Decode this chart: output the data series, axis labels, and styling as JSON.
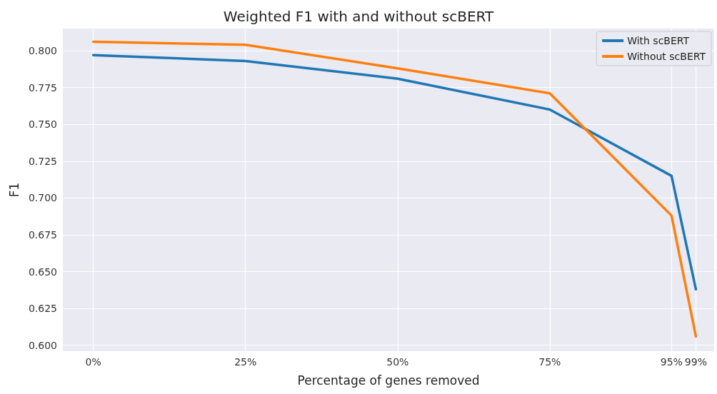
{
  "chart_data": {
    "type": "line",
    "title": "Weighted F1 with and without scBERT",
    "xlabel": "Percentage of genes removed",
    "ylabel": "F1",
    "x": [
      0,
      25,
      50,
      75,
      95,
      99
    ],
    "series": [
      {
        "name": "With scBERT",
        "color": "#1f77b4",
        "values": [
          0.797,
          0.793,
          0.781,
          0.76,
          0.715,
          0.638
        ]
      },
      {
        "name": "Without scBERT",
        "color": "#ff7f0e",
        "values": [
          0.806,
          0.804,
          0.788,
          0.771,
          0.688,
          0.606
        ]
      }
    ],
    "xlim": [
      -5,
      102
    ],
    "xticks": [
      {
        "value": 0,
        "label": "0%"
      },
      {
        "value": 25,
        "label": "25%"
      },
      {
        "value": 50,
        "label": "50%"
      },
      {
        "value": 75,
        "label": "75%"
      },
      {
        "value": 95,
        "label": "95%"
      },
      {
        "value": 99,
        "label": "99%"
      }
    ],
    "ylim": [
      0.596,
      0.815
    ],
    "yticks": [
      {
        "value": 0.6,
        "label": "0.600"
      },
      {
        "value": 0.625,
        "label": "0.625"
      },
      {
        "value": 0.65,
        "label": "0.650"
      },
      {
        "value": 0.675,
        "label": "0.675"
      },
      {
        "value": 0.7,
        "label": "0.700"
      },
      {
        "value": 0.725,
        "label": "0.725"
      },
      {
        "value": 0.75,
        "label": "0.750"
      },
      {
        "value": 0.775,
        "label": "0.775"
      },
      {
        "value": 0.8,
        "label": "0.800"
      }
    ],
    "grid": true,
    "legend": "top right",
    "marker": "none",
    "line_style": "solid"
  }
}
